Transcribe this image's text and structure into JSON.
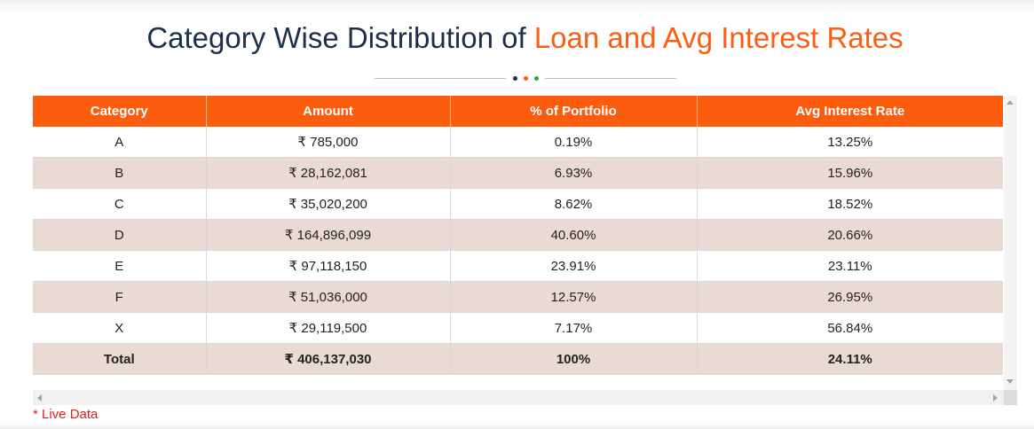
{
  "title": {
    "part1": "Category Wise Distribution of",
    "part2": "Loan and Avg Interest Rates"
  },
  "colors": {
    "accent": "#fb5e12",
    "title_dark": "#1c2f4b",
    "header_bg": "#fb5c0e",
    "row_alt_bg": "#e9dbd3",
    "note_red": "#e31e1e",
    "dots": [
      "#1c2f4b",
      "#fb5e12",
      "#28a745"
    ]
  },
  "table": {
    "headers": [
      "Category",
      "Amount",
      "% of Portfolio",
      "Avg Interest Rate"
    ],
    "rows": [
      [
        "A",
        "₹ 785,000",
        "0.19%",
        "13.25%"
      ],
      [
        "B",
        "₹ 28,162,081",
        "6.93%",
        "15.96%"
      ],
      [
        "C",
        "₹ 35,020,200",
        "8.62%",
        "18.52%"
      ],
      [
        "D",
        "₹ 164,896,099",
        "40.60%",
        "20.66%"
      ],
      [
        "E",
        "₹ 97,118,150",
        "23.91%",
        "23.11%"
      ],
      [
        "F",
        "₹ 51,036,000",
        "12.57%",
        "26.95%"
      ],
      [
        "X",
        "₹ 29,119,500",
        "7.17%",
        "56.84%"
      ]
    ],
    "total": [
      "Total",
      "₹ 406,137,030",
      "100%",
      "24.11%"
    ]
  },
  "note": "* Live Data",
  "icons": {
    "scroll_up": "triangle-up-icon",
    "scroll_down": "triangle-down-icon",
    "scroll_left": "triangle-left-icon",
    "scroll_right": "triangle-right-icon"
  }
}
